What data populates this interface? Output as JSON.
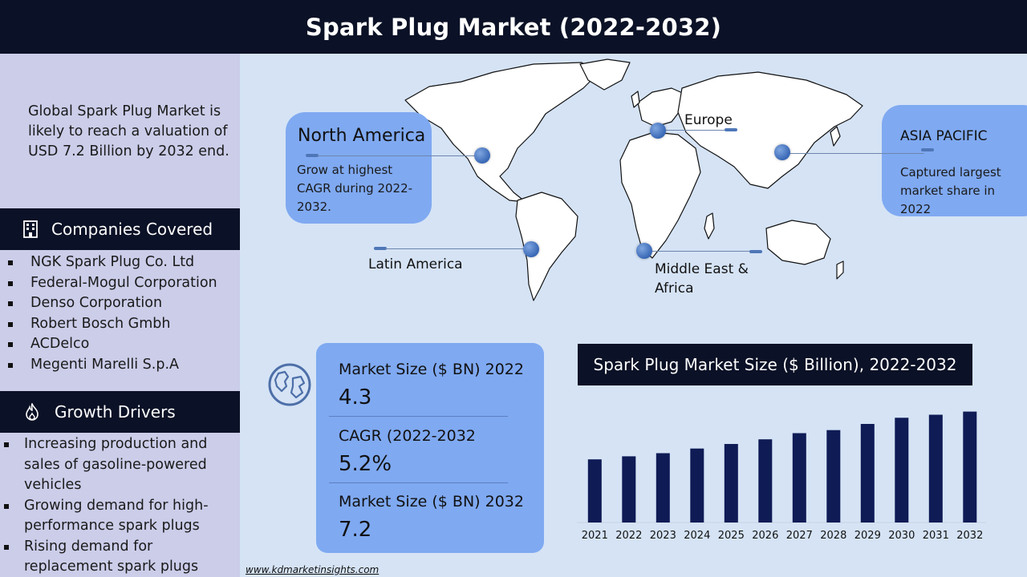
{
  "header": {
    "title": "Spark Plug Market (2022-2032)"
  },
  "sidebar": {
    "intro": "Global Spark Plug Market is likely to reach a valuation of USD 7.2 Billion by 2032 end.",
    "companies_title": "Companies Covered",
    "companies": [
      "NGK Spark Plug Co. Ltd",
      "Federal-Mogul Corporation",
      "Denso Corporation",
      "Robert Bosch Gmbh",
      "ACDelco",
      "Megenti Marelli S.p.A"
    ],
    "drivers_title": "Growth Drivers",
    "drivers": [
      "Increasing production and sales of gasoline-powered vehicles",
      "Growing demand for high-performance spark plugs",
      "Rising demand for replacement spark plugs"
    ]
  },
  "regions": {
    "north_america": {
      "name": "North America",
      "desc": "Grow at highest CAGR during 2022-2032."
    },
    "europe": {
      "name": "Europe"
    },
    "asia_pacific": {
      "name": "ASIA PACIFIC",
      "desc": "Captured largest market share in 2022"
    },
    "latin_america": {
      "name": "Latin America"
    },
    "mea": {
      "name": "Middle East & Africa"
    }
  },
  "stats": [
    {
      "label": "Market Size ($ BN) 2022",
      "value": "4.3"
    },
    {
      "label": "CAGR (2022-2032",
      "value": "5.2%"
    },
    {
      "label": "Market Size ($ BN) 2032",
      "value": "7.2"
    }
  ],
  "chart_data": {
    "type": "bar",
    "title": "Spark Plug Market Size ($ Billion), 2022-2032",
    "categories": [
      "2021",
      "2022",
      "2023",
      "2024",
      "2025",
      "2026",
      "2027",
      "2028",
      "2029",
      "2030",
      "2031",
      "2032"
    ],
    "values": [
      4.1,
      4.3,
      4.5,
      4.8,
      5.1,
      5.4,
      5.8,
      6.0,
      6.4,
      6.8,
      7.0,
      7.2
    ],
    "xlabel": "",
    "ylabel": "",
    "grid": false,
    "bar_color": "#0e1b55"
  },
  "footer": {
    "url": "www.kdmarketinsights.com"
  }
}
